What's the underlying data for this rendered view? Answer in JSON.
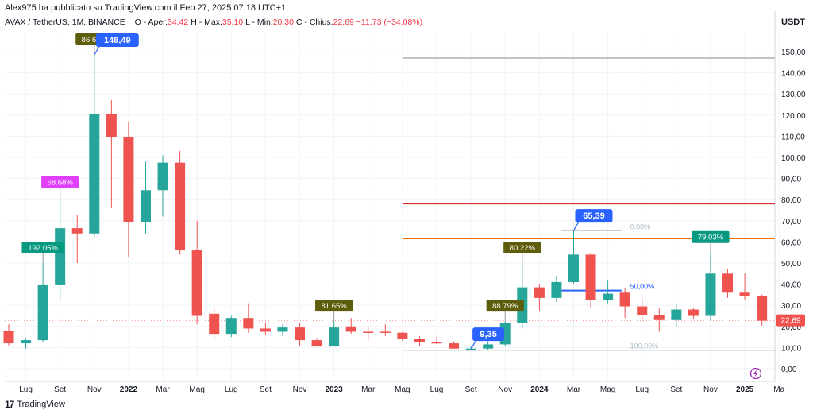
{
  "header": {
    "publisher": "Alex975 ha pubblicato su TradingView.com il Feb 27, 2025 07:18 UTC+1",
    "symbol": "AVAX / TetherUS, 1M, BINANCE",
    "open_label": "O - Aper.",
    "open": "34,42",
    "high_label": "H - Max.",
    "high": "35,10",
    "low_label": "L - Min.",
    "low": "20,30",
    "close_label": "C - Chius.",
    "close": "22,69",
    "change": "−11,73 (−34,08%)",
    "currency": "USDT"
  },
  "footer": {
    "brand": "TradingView",
    "brand_mark": "17"
  },
  "colors": {
    "up": "#26a69a",
    "down": "#ef5350",
    "blue": "#2962ff",
    "green_tag": "#089981",
    "olive_tag": "#5d5d0c",
    "magenta_tag": "#e040fb",
    "red_line": "#d32f2f",
    "orange_line": "#ef6c00"
  },
  "chart_data": {
    "type": "candlestick",
    "interval": "1M",
    "y_axis": {
      "min": -5,
      "max": 165,
      "ticks": [
        "0,00",
        "10,00",
        "20,00",
        "30,00",
        "40,00",
        "50,00",
        "60,00",
        "70,00",
        "80,00",
        "90,00",
        "100,00",
        "110,00",
        "120,00",
        "130,00",
        "140,00",
        "150,00"
      ],
      "tick_values": [
        0,
        10,
        20,
        30,
        40,
        50,
        60,
        70,
        80,
        90,
        100,
        110,
        120,
        130,
        140,
        150
      ],
      "last_price_label": "22,69",
      "last_price": 22.69
    },
    "x_axis": {
      "labels": [
        "Lug",
        "Set",
        "Nov",
        "2022",
        "Mar",
        "Mag",
        "Lug",
        "Set",
        "Nov",
        "2023",
        "Mar",
        "Mag",
        "Lug",
        "Set",
        "Nov",
        "2024",
        "Mar",
        "Mag",
        "Lug",
        "Set",
        "Nov",
        "2025",
        "Ma"
      ],
      "label_index": [
        1,
        3,
        5,
        7,
        9,
        11,
        13,
        15,
        17,
        19,
        21,
        23,
        25,
        27,
        29,
        31,
        33,
        35,
        37,
        39,
        41,
        43,
        45
      ]
    },
    "candles": [
      {
        "t": "2021-06",
        "o": 18.0,
        "h": 21.0,
        "l": 11.0,
        "c": 12.0
      },
      {
        "t": "2021-07",
        "o": 12.0,
        "h": 14.5,
        "l": 9.5,
        "c": 13.5
      },
      {
        "t": "2021-08",
        "o": 13.5,
        "h": 50.0,
        "l": 12.5,
        "c": 39.5
      },
      {
        "t": "2021-09",
        "o": 39.5,
        "h": 81.0,
        "l": 32.0,
        "c": 66.5
      },
      {
        "t": "2021-10",
        "o": 66.5,
        "h": 73.0,
        "l": 50.0,
        "c": 64.0
      },
      {
        "t": "2021-11",
        "o": 64.0,
        "h": 148.5,
        "l": 62.0,
        "c": 120.5
      },
      {
        "t": "2021-12",
        "o": 120.5,
        "h": 127.0,
        "l": 76.0,
        "c": 109.5
      },
      {
        "t": "2022-01",
        "o": 109.5,
        "h": 117.0,
        "l": 53.0,
        "c": 69.5
      },
      {
        "t": "2022-02",
        "o": 69.5,
        "h": 98.0,
        "l": 64.0,
        "c": 84.5
      },
      {
        "t": "2022-03",
        "o": 84.5,
        "h": 101.0,
        "l": 72.0,
        "c": 97.5
      },
      {
        "t": "2022-04",
        "o": 97.5,
        "h": 103.0,
        "l": 54.0,
        "c": 56.0
      },
      {
        "t": "2022-05",
        "o": 56.0,
        "h": 70.0,
        "l": 21.0,
        "c": 25.0
      },
      {
        "t": "2022-06",
        "o": 26.0,
        "h": 29.0,
        "l": 14.0,
        "c": 16.5
      },
      {
        "t": "2022-07",
        "o": 16.5,
        "h": 25.0,
        "l": 15.0,
        "c": 24.0
      },
      {
        "t": "2022-08",
        "o": 24.0,
        "h": 31.0,
        "l": 17.0,
        "c": 19.0
      },
      {
        "t": "2022-09",
        "o": 19.0,
        "h": 21.5,
        "l": 16.0,
        "c": 17.5
      },
      {
        "t": "2022-10",
        "o": 17.5,
        "h": 21.0,
        "l": 15.5,
        "c": 19.5
      },
      {
        "t": "2022-11",
        "o": 19.5,
        "h": 21.5,
        "l": 11.0,
        "c": 13.5
      },
      {
        "t": "2022-12",
        "o": 13.5,
        "h": 14.5,
        "l": 10.5,
        "c": 10.5
      },
      {
        "t": "2023-01",
        "o": 10.5,
        "h": 22.5,
        "l": 10.5,
        "c": 19.5
      },
      {
        "t": "2023-02",
        "o": 20.0,
        "h": 24.0,
        "l": 16.5,
        "c": 17.5
      },
      {
        "t": "2023-03",
        "o": 17.5,
        "h": 20.0,
        "l": 13.5,
        "c": 17.0
      },
      {
        "t": "2023-04",
        "o": 17.5,
        "h": 21.0,
        "l": 15.5,
        "c": 17.0
      },
      {
        "t": "2023-05",
        "o": 17.0,
        "h": 17.5,
        "l": 13.0,
        "c": 14.0
      },
      {
        "t": "2023-06",
        "o": 14.0,
        "h": 15.5,
        "l": 10.5,
        "c": 12.5
      },
      {
        "t": "2023-07",
        "o": 12.5,
        "h": 15.0,
        "l": 11.5,
        "c": 12.0
      },
      {
        "t": "2023-08",
        "o": 12.0,
        "h": 13.0,
        "l": 9.5,
        "c": 9.5
      },
      {
        "t": "2023-09",
        "o": 9.5,
        "h": 10.5,
        "l": 9.35,
        "c": 9.5
      },
      {
        "t": "2023-10",
        "o": 9.5,
        "h": 13.0,
        "l": 8.8,
        "c": 11.5
      },
      {
        "t": "2023-11",
        "o": 11.5,
        "h": 22.5,
        "l": 10.5,
        "c": 21.5
      },
      {
        "t": "2023-12",
        "o": 21.5,
        "h": 50.0,
        "l": 19.0,
        "c": 38.5
      },
      {
        "t": "2024-01",
        "o": 38.5,
        "h": 40.0,
        "l": 27.5,
        "c": 33.5
      },
      {
        "t": "2024-02",
        "o": 33.5,
        "h": 44.0,
        "l": 31.5,
        "c": 41.0
      },
      {
        "t": "2024-03",
        "o": 41.0,
        "h": 65.39,
        "l": 40.0,
        "c": 54.0
      },
      {
        "t": "2024-04",
        "o": 54.0,
        "h": 54.5,
        "l": 29.0,
        "c": 32.5
      },
      {
        "t": "2024-05",
        "o": 32.5,
        "h": 42.0,
        "l": 31.0,
        "c": 35.5
      },
      {
        "t": "2024-06",
        "o": 36.0,
        "h": 38.0,
        "l": 24.0,
        "c": 29.5
      },
      {
        "t": "2024-07",
        "o": 29.5,
        "h": 33.5,
        "l": 22.5,
        "c": 25.5
      },
      {
        "t": "2024-08",
        "o": 25.5,
        "h": 28.5,
        "l": 17.5,
        "c": 23.0
      },
      {
        "t": "2024-09",
        "o": 23.0,
        "h": 30.5,
        "l": 20.0,
        "c": 28.0
      },
      {
        "t": "2024-10",
        "o": 28.0,
        "h": 29.0,
        "l": 23.5,
        "c": 25.0
      },
      {
        "t": "2024-11",
        "o": 25.0,
        "h": 55.0,
        "l": 23.0,
        "c": 45.0
      },
      {
        "t": "2024-12",
        "o": 45.0,
        "h": 47.0,
        "l": 33.5,
        "c": 36.0
      },
      {
        "t": "2025-01",
        "o": 36.0,
        "h": 45.0,
        "l": 32.5,
        "c": 34.4
      },
      {
        "t": "2025-02",
        "o": 34.42,
        "h": 35.1,
        "l": 20.3,
        "c": 22.69
      }
    ],
    "annotations": [
      {
        "type": "tag",
        "text": "192.05%",
        "color": "#089981",
        "x": 2,
        "y": 50.0,
        "position": "above"
      },
      {
        "type": "tag",
        "text": "68.68%",
        "color": "#e040fb",
        "x": 3,
        "y": 81.0,
        "position": "above"
      },
      {
        "type": "tag",
        "text": "86.68%",
        "color": "#5d5d0c",
        "x": 5,
        "y": 148.5,
        "position": "above"
      },
      {
        "type": "price_label",
        "text": "148,49",
        "color": "#2962ff",
        "x": 5,
        "y": 148.5
      },
      {
        "type": "tag",
        "text": "81.65%",
        "color": "#5d5d0c",
        "x": 19,
        "y": 22.5,
        "position": "above"
      },
      {
        "type": "price_label",
        "text": "9,35",
        "color": "#2962ff",
        "x": 27,
        "y": 9.35
      },
      {
        "type": "tag",
        "text": "88.79%",
        "color": "#5d5d0c",
        "x": 29,
        "y": 22.5,
        "position": "above"
      },
      {
        "type": "tag",
        "text": "80.22%",
        "color": "#5d5d0c",
        "x": 30,
        "y": 50.0,
        "position": "above"
      },
      {
        "type": "price_label",
        "text": "65,39",
        "color": "#2962ff",
        "x": 33,
        "y": 65.39
      },
      {
        "type": "tag",
        "text": "79.03%",
        "color": "#089981",
        "x": 41,
        "y": 55.0,
        "position": "above"
      }
    ],
    "horizontal_lines": [
      {
        "y": 147.0,
        "color": "#9e9e9e",
        "from_index": 23
      },
      {
        "y": 78.0,
        "color": "#d32f2f",
        "from_index": 23
      },
      {
        "y": 61.5,
        "color": "#ef6c00",
        "from_index": 23
      },
      {
        "y": 8.8,
        "color": "#9e9e9e",
        "from_index": 23
      }
    ],
    "fib_levels": [
      {
        "text": "0,00%",
        "y": 65.3,
        "color": "#b0bec5"
      },
      {
        "text": "50,00%",
        "y": 37.0,
        "color": "#2962ff"
      },
      {
        "text": "100,00%",
        "y": 8.8,
        "color": "#b0bec5"
      }
    ]
  }
}
